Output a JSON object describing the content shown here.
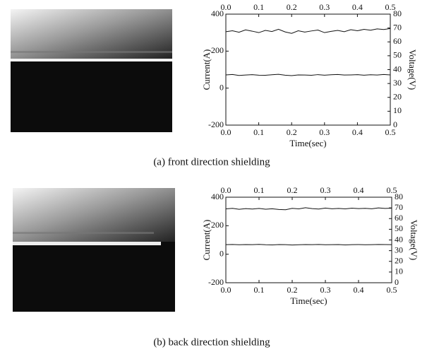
{
  "chart_data": [
    {
      "type": "line",
      "caption": "(a) front direction shielding",
      "xlabel": "Time(sec)",
      "ylabel": "Current(A)",
      "y2label": "Voltage(V)",
      "x": [
        0,
        0.02,
        0.04,
        0.06,
        0.08,
        0.1,
        0.12,
        0.14,
        0.16,
        0.18,
        0.2,
        0.22,
        0.24,
        0.26,
        0.28,
        0.3,
        0.32,
        0.34,
        0.36,
        0.38,
        0.4,
        0.42,
        0.44,
        0.46,
        0.48,
        0.5
      ],
      "series": [
        {
          "name": "Current",
          "color": "#111111",
          "values": [
            305,
            310,
            302,
            315,
            308,
            300,
            312,
            306,
            318,
            304,
            296,
            310,
            303,
            309,
            314,
            300,
            307,
            312,
            305,
            316,
            310,
            318,
            313,
            320,
            317,
            322
          ]
        },
        {
          "name": "Voltage",
          "color": "#111111",
          "axis": "y2",
          "values": [
            36.2,
            36.5,
            35.8,
            36.1,
            36.4,
            36.0,
            35.9,
            36.3,
            36.6,
            36.0,
            35.7,
            36.2,
            36.1,
            35.9,
            36.4,
            36.0,
            36.3,
            36.5,
            36.1,
            36.2,
            36.4,
            36.0,
            36.3,
            36.1,
            36.5,
            36.2
          ]
        }
      ],
      "xlim": [
        0,
        0.5
      ],
      "xticks": [
        {
          "value": 0,
          "label": "0.0"
        },
        {
          "value": 0.1,
          "label": "0.1"
        },
        {
          "value": 0.2,
          "label": "0.2"
        },
        {
          "value": 0.3,
          "label": "0.3"
        },
        {
          "value": 0.4,
          "label": "0.4"
        },
        {
          "value": 0.5,
          "label": "0.5"
        }
      ],
      "ylim": [
        -200,
        400
      ],
      "yticks": [
        -200,
        0,
        200,
        400
      ],
      "y2lim": [
        0,
        80
      ],
      "y2ticks": [
        0,
        10,
        20,
        30,
        40,
        50,
        60,
        70,
        80
      ]
    },
    {
      "type": "line",
      "caption": "(b) back direction shielding",
      "xlabel": "Time(sec)",
      "ylabel": "Current(A)",
      "y2label": "Voltage(V)",
      "x": [
        0,
        0.02,
        0.04,
        0.06,
        0.08,
        0.1,
        0.12,
        0.14,
        0.16,
        0.18,
        0.2,
        0.22,
        0.24,
        0.26,
        0.28,
        0.3,
        0.32,
        0.34,
        0.36,
        0.38,
        0.4,
        0.42,
        0.44,
        0.46,
        0.48,
        0.5
      ],
      "series": [
        {
          "name": "Current",
          "color": "#111111",
          "values": [
            318,
            322,
            315,
            320,
            317,
            321,
            316,
            319,
            314,
            312,
            322,
            318,
            326,
            320,
            317,
            324,
            319,
            321,
            318,
            323,
            320,
            322,
            319,
            325,
            321,
            323
          ]
        },
        {
          "name": "Voltage",
          "color": "#111111",
          "axis": "y2",
          "values": [
            35.6,
            35.8,
            35.5,
            35.7,
            35.6,
            35.9,
            35.5,
            35.4,
            35.7,
            35.6,
            35.3,
            35.5,
            35.7,
            35.6,
            35.8,
            35.5,
            35.6,
            35.7,
            35.4,
            35.6,
            35.7,
            35.5,
            35.6,
            35.8,
            35.7,
            35.6
          ]
        }
      ],
      "xlim": [
        0,
        0.5
      ],
      "xticks": [
        {
          "value": 0,
          "label": "0.0"
        },
        {
          "value": 0.1,
          "label": "0.1"
        },
        {
          "value": 0.2,
          "label": "0.2"
        },
        {
          "value": 0.3,
          "label": "0.3"
        },
        {
          "value": 0.4,
          "label": "0.4"
        },
        {
          "value": 0.5,
          "label": "0.5"
        }
      ],
      "ylim": [
        -200,
        400
      ],
      "yticks": [
        -200,
        0,
        200,
        400
      ],
      "y2lim": [
        0,
        80
      ],
      "y2ticks": [
        0,
        10,
        20,
        30,
        40,
        50,
        60,
        70,
        80
      ]
    }
  ]
}
